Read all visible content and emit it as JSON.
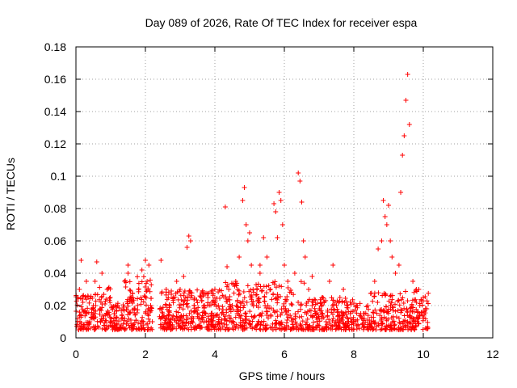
{
  "chart_data": {
    "type": "scatter",
    "title": "Day 089 of 2026, Rate Of TEC Index for receiver espa",
    "xlabel": "GPS time / hours",
    "ylabel": "ROTI / TECUs",
    "xlim": [
      0,
      12
    ],
    "ylim": [
      0,
      0.18
    ],
    "grid": true,
    "marker": "+",
    "color": "#ff0000",
    "x_ticks": [
      "0",
      "2",
      "4",
      "6",
      "8",
      "10",
      "12"
    ],
    "y_ticks": [
      "0",
      "0.02",
      "0.04",
      "0.06",
      "0.08",
      "0.1",
      "0.12",
      "0.14",
      "0.16",
      "0.18"
    ],
    "series": [
      {
        "name": "ROTI",
        "x": [
          0.05,
          0.1,
          0.15,
          0.2,
          0.3,
          0.4,
          0.5,
          0.55,
          0.6,
          0.7,
          0.75,
          0.8,
          0.9,
          1.0,
          1.1,
          1.2,
          1.3,
          1.4,
          1.5,
          1.6,
          1.7,
          1.8,
          1.9,
          2.0,
          2.05,
          2.1,
          2.15,
          2.2,
          2.45,
          2.5,
          2.6,
          2.7,
          2.8,
          2.9,
          3.0,
          3.1,
          3.2,
          3.25,
          3.3,
          3.4,
          3.5,
          3.6,
          3.7,
          3.8,
          3.9,
          4.0,
          4.1,
          4.2,
          4.3,
          4.35,
          4.4,
          4.5,
          4.6,
          4.7,
          4.8,
          4.85,
          4.9,
          4.95,
          5.0,
          5.05,
          5.1,
          5.2,
          5.3,
          5.4,
          5.5,
          5.6,
          5.7,
          5.75,
          5.8,
          5.85,
          5.9,
          5.95,
          6.0,
          6.1,
          6.2,
          6.3,
          6.4,
          6.45,
          6.5,
          6.55,
          6.6,
          6.7,
          6.8,
          6.9,
          7.0,
          7.1,
          7.2,
          7.3,
          7.4,
          7.5,
          7.6,
          7.7,
          7.8,
          7.9,
          8.0,
          8.1,
          8.2,
          8.3,
          8.4,
          8.5,
          8.6,
          8.7,
          8.8,
          8.85,
          8.9,
          8.95,
          9.0,
          9.05,
          9.1,
          9.2,
          9.3,
          9.35,
          9.4,
          9.45,
          9.5,
          9.55,
          9.6,
          9.7,
          9.8,
          9.9,
          10.0,
          10.1,
          0.3,
          1.5,
          2.6,
          3.6,
          5.3,
          6.8,
          7.6,
          8.3,
          9.8
        ],
        "y": [
          0.012,
          0.03,
          0.048,
          0.022,
          0.015,
          0.01,
          0.02,
          0.035,
          0.047,
          0.018,
          0.04,
          0.012,
          0.03,
          0.01,
          0.015,
          0.02,
          0.008,
          0.012,
          0.045,
          0.025,
          0.018,
          0.03,
          0.042,
          0.048,
          0.035,
          0.045,
          0.02,
          0.01,
          0.048,
          0.015,
          0.02,
          0.01,
          0.025,
          0.035,
          0.03,
          0.038,
          0.056,
          0.063,
          0.06,
          0.02,
          0.015,
          0.01,
          0.02,
          0.025,
          0.012,
          0.03,
          0.02,
          0.015,
          0.081,
          0.044,
          0.03,
          0.02,
          0.035,
          0.05,
          0.085,
          0.093,
          0.07,
          0.06,
          0.065,
          0.045,
          0.03,
          0.02,
          0.04,
          0.062,
          0.05,
          0.03,
          0.083,
          0.078,
          0.062,
          0.09,
          0.085,
          0.07,
          0.045,
          0.035,
          0.028,
          0.04,
          0.102,
          0.097,
          0.084,
          0.06,
          0.05,
          0.03,
          0.02,
          0.015,
          0.012,
          0.025,
          0.01,
          0.035,
          0.045,
          0.02,
          0.012,
          0.03,
          0.02,
          0.015,
          0.01,
          0.02,
          0.015,
          0.012,
          0.02,
          0.01,
          0.035,
          0.055,
          0.06,
          0.085,
          0.075,
          0.07,
          0.082,
          0.06,
          0.05,
          0.04,
          0.045,
          0.09,
          0.113,
          0.125,
          0.147,
          0.163,
          0.132,
          0.035,
          0.03,
          0.02,
          0.025,
          0.018,
          0.035,
          0.04,
          0.03,
          0.025,
          0.045,
          0.038,
          0.025,
          0.015,
          0.022
        ]
      }
    ]
  }
}
